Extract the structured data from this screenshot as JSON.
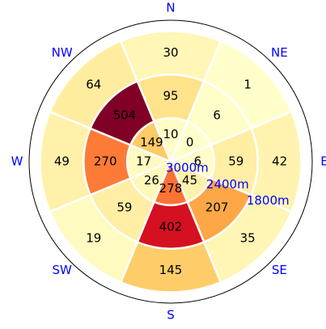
{
  "chart_data": {
    "type": "polar_heatmap",
    "categories": [
      "N",
      "NE",
      "E",
      "SE",
      "S",
      "SW",
      "W",
      "NW"
    ],
    "rings": [
      {
        "range": [
          3000,
          2400
        ],
        "values": [
          10,
          0,
          6,
          45,
          278,
          26,
          17,
          149
        ]
      },
      {
        "range": [
          2400,
          1800
        ],
        "values": [
          95,
          6,
          59,
          207,
          402,
          59,
          270,
          504
        ]
      },
      {
        "range": [
          1800,
          1200
        ],
        "values": [
          30,
          1,
          42,
          35,
          145,
          19,
          49,
          64
        ]
      }
    ],
    "rlim": [
      3000,
      1050
    ],
    "rticks": [
      {
        "value": 3000,
        "label": "3000m"
      },
      {
        "value": 2400,
        "label": "2400m"
      },
      {
        "value": 1800,
        "label": "1800m"
      }
    ],
    "colormap": "YlOrRd",
    "clim": [
      0,
      504
    ]
  }
}
